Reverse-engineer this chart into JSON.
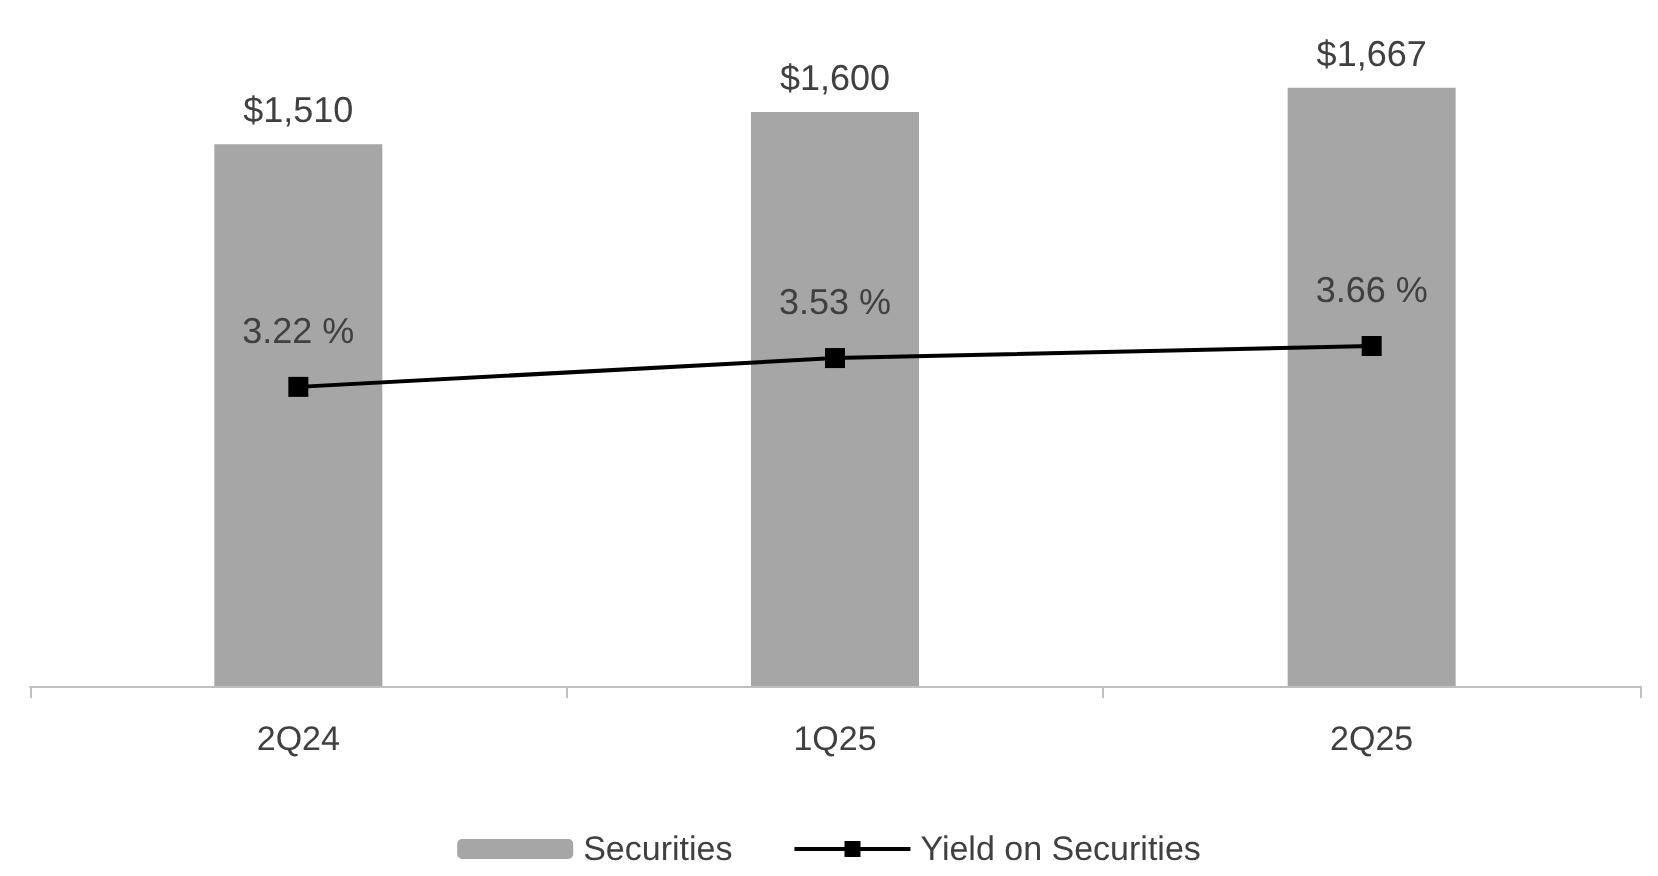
{
  "chart_data": {
    "type": "bar",
    "categories": [
      "2Q24",
      "1Q25",
      "2Q25"
    ],
    "series": [
      {
        "name": "Securities",
        "color": "#a6a6a6",
        "values": [
          1510,
          1600,
          1667
        ],
        "value_labels": [
          "$1,510",
          "$1,600",
          "$1,667"
        ]
      },
      {
        "name": "Yield on Securities",
        "type": "line",
        "axis": "y2",
        "color": "#000000",
        "values": [
          3.22,
          3.53,
          3.66
        ],
        "value_labels": [
          "3.22 %",
          "3.53 %",
          "3.66 %"
        ],
        "marker": "square",
        "line_style": "solid"
      }
    ],
    "tick_labels": "x",
    "grid": false,
    "legend": "bottom"
  }
}
